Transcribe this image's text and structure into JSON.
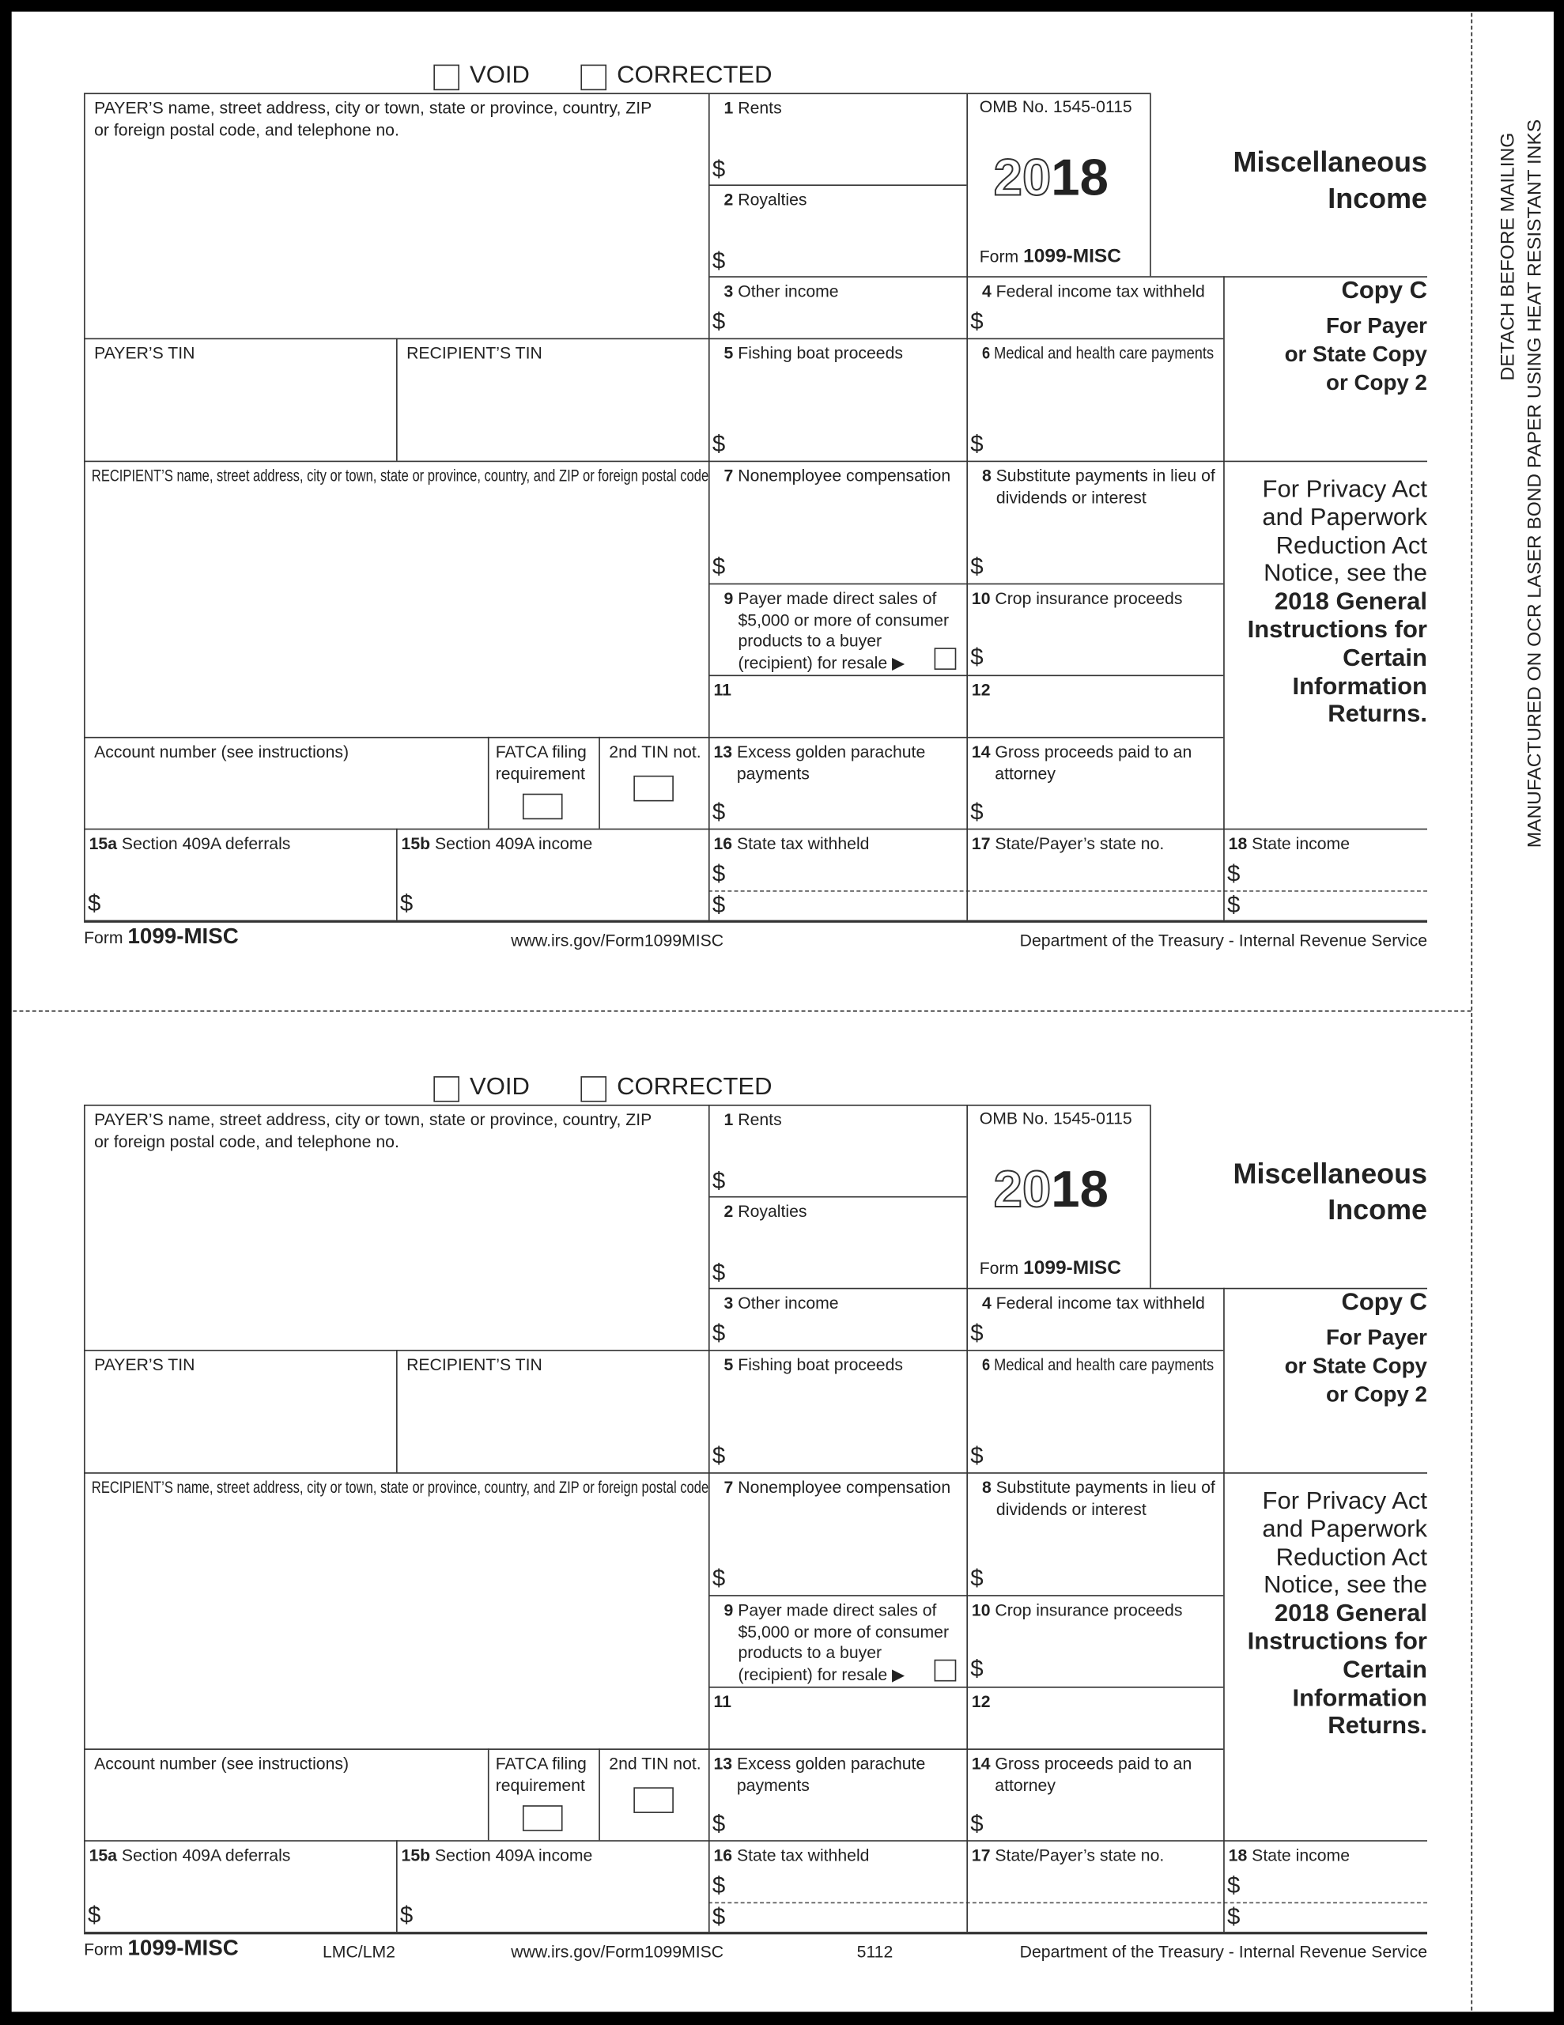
{
  "form": {
    "void": "VOID",
    "corrected": "CORRECTED",
    "payer_name": [
      "PAYER’S name, street address, city or town, state or province, country, ZIP",
      "or foreign postal code, and telephone no."
    ],
    "box1": {
      "num": "1",
      "label": "Rents"
    },
    "box2": {
      "num": "2",
      "label": "Royalties"
    },
    "omb": "OMB No. 1545-0115",
    "year_outline": "20",
    "year_bold": "18",
    "form_word": "Form",
    "form_name": "1099-MISC",
    "title": [
      "Miscellaneous",
      "Income"
    ],
    "box3": {
      "num": "3",
      "label": "Other income"
    },
    "box4": {
      "num": "4",
      "label": "Federal income tax withheld"
    },
    "copy_title": "Copy C",
    "copy_sub": [
      "For Payer",
      "or State Copy",
      "or Copy 2"
    ],
    "payer_tin": "PAYER’S TIN",
    "recipient_tin": "RECIPIENT’S TIN",
    "box5": {
      "num": "5",
      "label": "Fishing boat proceeds"
    },
    "box6": {
      "num": "6",
      "label": "Medical and health care payments"
    },
    "recipient_name": "RECIPIENT’S name, street address, city or town, state or province, country, and ZIP or foreign postal code",
    "box7": {
      "num": "7",
      "label": "Nonemployee compensation"
    },
    "box8": {
      "num": "8",
      "label": [
        "Substitute payments in lieu of",
        "dividends or interest"
      ]
    },
    "privacy": [
      "For Privacy Act",
      "and Paperwork",
      "Reduction Act",
      "Notice, see the"
    ],
    "privacy_bold": [
      "2018 General",
      "Instructions for",
      "Certain",
      "Information",
      "Returns."
    ],
    "box9": {
      "num": "9",
      "label": [
        "Payer made direct sales of",
        "$5,000 or more of consumer",
        "products to a buyer",
        "(recipient) for resale ▶"
      ]
    },
    "box10": {
      "num": "10",
      "label": "Crop insurance proceeds"
    },
    "box11": {
      "num": "11"
    },
    "box12": {
      "num": "12"
    },
    "account": "Account number (see instructions)",
    "fatca": [
      "FATCA filing",
      "requirement"
    ],
    "tin2": "2nd TIN not.",
    "box13": {
      "num": "13",
      "label": [
        "Excess golden parachute",
        "payments"
      ]
    },
    "box14": {
      "num": "14",
      "label": [
        "Gross proceeds paid to an",
        "attorney"
      ]
    },
    "box15a": {
      "num": "15a",
      "label": "Section 409A deferrals"
    },
    "box15b": {
      "num": "15b",
      "label": "Section 409A income"
    },
    "box16": {
      "num": "16",
      "label": "State tax withheld"
    },
    "box17": {
      "num": "17",
      "label": "State/Payer’s state no."
    },
    "box18": {
      "num": "18",
      "label": "State income"
    },
    "dollar": "$",
    "url": "www.irs.gov/Form1099MISC",
    "dept": "Department of the Treasury - Internal Revenue Service"
  },
  "copies": [
    {
      "extra_code": "",
      "extra_num": ""
    },
    {
      "extra_code": "LMC/LM2",
      "extra_num": "5112"
    }
  ],
  "side": {
    "detach": "DETACH BEFORE MAILING",
    "manufactured": "MANUFACTURED ON OCR LASER BOND PAPER USING HEAT RESISTANT INKS"
  }
}
